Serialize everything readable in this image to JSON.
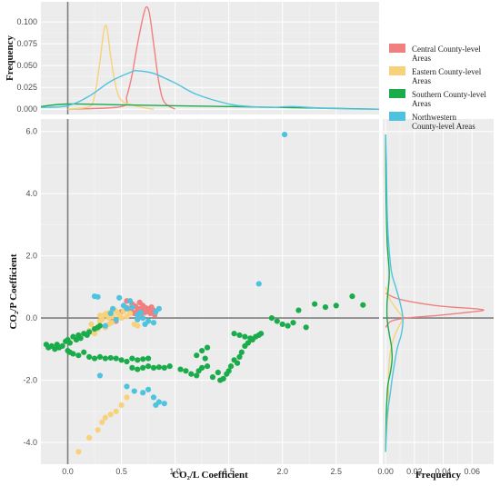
{
  "chart_data": {
    "type": "scatter",
    "xlabel": "CO₂/L  Coefficient",
    "ylabel": "CO₂/P  Coefficient",
    "top_marginal_ylabel": "Frequency",
    "right_marginal_xlabel": "Frequency",
    "xlim": [
      -0.25,
      2.9
    ],
    "ylim": [
      -4.7,
      6.4
    ],
    "x_ticks": [
      "0.0",
      "0.5",
      "1.0",
      "1.5",
      "2.0",
      "2.5"
    ],
    "y_ticks": [
      "-4.0",
      "-2.0",
      "0.0",
      "2.0",
      "4.0",
      "6.0"
    ],
    "top_ticks": [
      "0.000",
      "0.025",
      "0.050",
      "0.075",
      "0.100"
    ],
    "right_ticks": [
      "0.00",
      "0.02",
      "0.04",
      "0.06"
    ],
    "top_ylim": [
      -0.006,
      0.123
    ],
    "right_xlim": [
      -0.002,
      0.075
    ],
    "reference_lines": {
      "x": 0,
      "y": 0
    },
    "grid": true,
    "legend_position": "right of top marginal",
    "series": [
      {
        "name": "Central County-level Areas",
        "color": "#f08080",
        "points": [
          [
            0.5,
            0.2
          ],
          [
            0.55,
            0.33
          ],
          [
            0.58,
            0.28
          ],
          [
            0.6,
            0.2
          ],
          [
            0.62,
            0.15
          ],
          [
            0.63,
            0.38
          ],
          [
            0.65,
            0.25
          ],
          [
            0.66,
            0.3
          ],
          [
            0.68,
            0.12
          ],
          [
            0.7,
            0.28
          ],
          [
            0.7,
            0.4
          ],
          [
            0.72,
            0.18
          ],
          [
            0.73,
            0.32
          ],
          [
            0.74,
            0.22
          ],
          [
            0.76,
            0.3
          ],
          [
            0.77,
            0.15
          ],
          [
            0.78,
            0.35
          ],
          [
            0.8,
            0.25
          ],
          [
            0.81,
            0.1
          ],
          [
            0.55,
            0.55
          ],
          [
            0.6,
            0.45
          ],
          [
            0.67,
            0.5
          ],
          [
            0.4,
            -0.02
          ],
          [
            0.35,
            -0.3
          ],
          [
            0.45,
            -0.1
          ]
        ],
        "density": {
          "x": [
            0.0,
            0.5,
            0.55,
            0.6,
            0.65,
            0.7,
            0.73,
            0.76,
            0.8,
            0.85,
            0.9,
            1.0
          ],
          "y": [
            0.0,
            0.003,
            0.015,
            0.04,
            0.075,
            0.105,
            0.117,
            0.11,
            0.075,
            0.03,
            0.008,
            0.0
          ]
        }
      },
      {
        "name": "Eastern County-level Areas",
        "color": "#f7d27a",
        "points": [
          [
            0.1,
            -4.3
          ],
          [
            0.2,
            -3.85
          ],
          [
            0.28,
            -3.6
          ],
          [
            0.32,
            -3.35
          ],
          [
            0.35,
            -3.2
          ],
          [
            0.4,
            -3.1
          ],
          [
            0.45,
            -3.0
          ],
          [
            0.5,
            -2.8
          ],
          [
            0.55,
            -2.55
          ],
          [
            0.3,
            -0.1
          ],
          [
            0.32,
            -0.05
          ],
          [
            0.34,
            0.1
          ],
          [
            0.35,
            -0.3
          ],
          [
            0.36,
            0.15
          ],
          [
            0.38,
            0.0
          ],
          [
            0.38,
            -0.2
          ],
          [
            0.4,
            0.2
          ],
          [
            0.41,
            -0.15
          ],
          [
            0.42,
            0.05
          ],
          [
            0.44,
            0.25
          ],
          [
            0.45,
            -0.05
          ],
          [
            0.46,
            0.18
          ],
          [
            0.48,
            0.1
          ],
          [
            0.5,
            0.0
          ],
          [
            0.52,
            0.22
          ],
          [
            0.55,
            0.05
          ],
          [
            0.58,
            0.15
          ],
          [
            0.62,
            -0.2
          ],
          [
            0.65,
            -0.25
          ],
          [
            0.2,
            -0.4
          ],
          [
            0.22,
            -0.2
          ],
          [
            0.25,
            -0.5
          ],
          [
            0.28,
            -0.35
          ],
          [
            0.3,
            0.08
          ]
        ],
        "density": {
          "x": [
            0.0,
            0.2,
            0.25,
            0.3,
            0.33,
            0.35,
            0.37,
            0.4,
            0.45,
            0.5,
            0.6,
            0.7,
            0.8
          ],
          "y": [
            0.0,
            0.003,
            0.015,
            0.055,
            0.085,
            0.096,
            0.09,
            0.06,
            0.025,
            0.01,
            0.005,
            0.002,
            0.0
          ]
        }
      },
      {
        "name": "Southern County-level Areas",
        "color": "#1aab4a",
        "points": [
          [
            -0.2,
            -0.85
          ],
          [
            -0.18,
            -0.95
          ],
          [
            -0.15,
            -0.9
          ],
          [
            -0.12,
            -1.0
          ],
          [
            -0.1,
            -0.85
          ],
          [
            -0.08,
            -0.95
          ],
          [
            -0.05,
            -0.9
          ],
          [
            -0.02,
            -0.75
          ],
          [
            0.0,
            -0.7
          ],
          [
            0.02,
            -0.8
          ],
          [
            0.05,
            -0.6
          ],
          [
            0.08,
            -0.7
          ],
          [
            0.1,
            -0.55
          ],
          [
            0.12,
            -0.65
          ],
          [
            0.15,
            -0.5
          ],
          [
            0.18,
            -0.55
          ],
          [
            0.2,
            -0.45
          ],
          [
            0.25,
            -0.35
          ],
          [
            0.28,
            -0.3
          ],
          [
            0.3,
            -0.25
          ],
          [
            0.0,
            -1.05
          ],
          [
            0.02,
            -1.1
          ],
          [
            0.05,
            -1.15
          ],
          [
            0.1,
            -1.2
          ],
          [
            0.15,
            -1.1
          ],
          [
            0.2,
            -1.25
          ],
          [
            0.25,
            -1.3
          ],
          [
            0.3,
            -1.25
          ],
          [
            0.35,
            -1.3
          ],
          [
            0.4,
            -1.28
          ],
          [
            0.45,
            -1.3
          ],
          [
            0.5,
            -1.35
          ],
          [
            0.55,
            -1.4
          ],
          [
            0.6,
            -1.3
          ],
          [
            0.65,
            -1.35
          ],
          [
            0.7,
            -1.32
          ],
          [
            0.75,
            -1.3
          ],
          [
            0.6,
            -1.6
          ],
          [
            0.65,
            -1.65
          ],
          [
            0.7,
            -1.6
          ],
          [
            0.75,
            -1.55
          ],
          [
            0.8,
            -1.6
          ],
          [
            0.85,
            -1.58
          ],
          [
            0.9,
            -1.6
          ],
          [
            0.95,
            -1.55
          ],
          [
            1.05,
            -1.65
          ],
          [
            1.1,
            -1.7
          ],
          [
            1.15,
            -1.8
          ],
          [
            1.2,
            -1.85
          ],
          [
            1.22,
            -1.7
          ],
          [
            1.25,
            -1.6
          ],
          [
            1.28,
            -1.3
          ],
          [
            1.3,
            -1.55
          ],
          [
            1.35,
            -1.9
          ],
          [
            1.4,
            -1.75
          ],
          [
            1.42,
            -2.0
          ],
          [
            1.45,
            -1.95
          ],
          [
            1.48,
            -1.8
          ],
          [
            1.5,
            -1.7
          ],
          [
            1.52,
            -1.55
          ],
          [
            1.55,
            -1.35
          ],
          [
            1.58,
            -1.45
          ],
          [
            1.6,
            -1.25
          ],
          [
            1.62,
            -1.1
          ],
          [
            1.65,
            -0.9
          ],
          [
            1.68,
            -0.8
          ],
          [
            1.72,
            -0.7
          ],
          [
            1.75,
            -0.6
          ],
          [
            1.78,
            -0.55
          ],
          [
            1.8,
            -0.5
          ],
          [
            1.55,
            -0.5
          ],
          [
            1.6,
            -0.55
          ],
          [
            1.65,
            -0.6
          ],
          [
            1.7,
            -0.65
          ],
          [
            1.9,
            0.0
          ],
          [
            1.95,
            -0.1
          ],
          [
            2.0,
            -0.2
          ],
          [
            2.05,
            -0.25
          ],
          [
            2.1,
            -0.15
          ],
          [
            2.15,
            0.25
          ],
          [
            2.22,
            -0.3
          ],
          [
            2.3,
            0.45
          ],
          [
            2.4,
            0.35
          ],
          [
            2.5,
            0.4
          ],
          [
            2.65,
            0.7
          ],
          [
            2.75,
            0.42
          ],
          [
            1.2,
            -1.2
          ],
          [
            1.25,
            -1.05
          ],
          [
            1.3,
            -0.95
          ]
        ],
        "density": {
          "x": [
            -0.25,
            0.0,
            0.5,
            1.0,
            1.5,
            2.0,
            2.5,
            2.9
          ],
          "y": [
            0.003,
            0.006,
            0.005,
            0.004,
            0.003,
            0.002,
            0.001,
            0.0
          ]
        }
      },
      {
        "name": "Northwestern County-level Areas",
        "color": "#4ec3e0",
        "points": [
          [
            2.02,
            5.9
          ],
          [
            1.78,
            1.1
          ],
          [
            0.25,
            0.7
          ],
          [
            0.28,
            0.68
          ],
          [
            0.48,
            0.65
          ],
          [
            0.52,
            0.4
          ],
          [
            0.55,
            0.3
          ],
          [
            0.58,
            0.55
          ],
          [
            0.6,
            0.35
          ],
          [
            0.65,
            0.1
          ],
          [
            0.7,
            0.0
          ],
          [
            0.75,
            -0.1
          ],
          [
            0.8,
            -0.15
          ],
          [
            0.82,
            0.2
          ],
          [
            0.85,
            0.3
          ],
          [
            0.4,
            0.15
          ],
          [
            0.42,
            0.3
          ],
          [
            0.45,
            -0.05
          ],
          [
            0.3,
            -1.85
          ],
          [
            0.55,
            -2.2
          ],
          [
            0.62,
            -2.35
          ],
          [
            0.7,
            -2.4
          ],
          [
            0.75,
            -2.3
          ],
          [
            0.8,
            -2.55
          ],
          [
            0.85,
            -2.7
          ],
          [
            0.9,
            -2.75
          ],
          [
            0.82,
            -2.8
          ],
          [
            0.65,
            -0.05
          ],
          [
            0.68,
            0.18
          ],
          [
            0.72,
            -0.2
          ],
          [
            0.35,
            -0.25
          ]
        ],
        "density": {
          "x": [
            -0.25,
            0.0,
            0.2,
            0.4,
            0.6,
            0.65,
            0.8,
            1.0,
            1.2,
            1.5,
            1.7,
            1.9,
            2.1,
            2.4,
            2.9
          ],
          "y": [
            0.002,
            0.004,
            0.015,
            0.032,
            0.043,
            0.044,
            0.041,
            0.03,
            0.017,
            0.006,
            0.003,
            0.002,
            0.003,
            0.001,
            0.0
          ]
        }
      }
    ],
    "right_density": [
      {
        "name": "Central County-level Areas",
        "y": [
          -0.3,
          -0.1,
          0.0,
          0.1,
          0.2,
          0.25,
          0.3,
          0.4,
          0.6,
          0.8
        ],
        "x": [
          0.0,
          0.004,
          0.015,
          0.04,
          0.06,
          0.068,
          0.062,
          0.035,
          0.01,
          0.0
        ]
      },
      {
        "name": "Eastern County-level Areas",
        "y": [
          -4.3,
          -3.5,
          -2.8,
          -2.0,
          -1.2,
          -0.6,
          -0.2,
          0.0,
          0.2,
          0.6,
          1.0
        ],
        "x": [
          0.0,
          0.001,
          0.002,
          0.002,
          0.003,
          0.006,
          0.01,
          0.012,
          0.009,
          0.003,
          0.0
        ]
      },
      {
        "name": "Southern County-level Areas",
        "y": [
          -4.3,
          -3.0,
          -2.2,
          -1.7,
          -1.3,
          -0.9,
          -0.5,
          0.0,
          0.5,
          1.0,
          1.5,
          2.5,
          4.0,
          5.9
        ],
        "x": [
          0.0,
          0.0005,
          0.0015,
          0.0035,
          0.0045,
          0.004,
          0.0025,
          0.001,
          0.001,
          0.002,
          0.0025,
          0.001,
          0.0003,
          0.0
        ]
      },
      {
        "name": "Northwestern County-level Areas",
        "y": [
          -4.3,
          -3.2,
          -2.5,
          -1.8,
          -1.0,
          -0.5,
          0.0,
          0.5,
          1.0,
          1.5,
          2.5,
          3.5,
          5.0,
          5.9
        ],
        "x": [
          0.0,
          0.001,
          0.003,
          0.005,
          0.008,
          0.011,
          0.012,
          0.01,
          0.007,
          0.004,
          0.002,
          0.001,
          0.0005,
          0.0
        ]
      }
    ]
  }
}
